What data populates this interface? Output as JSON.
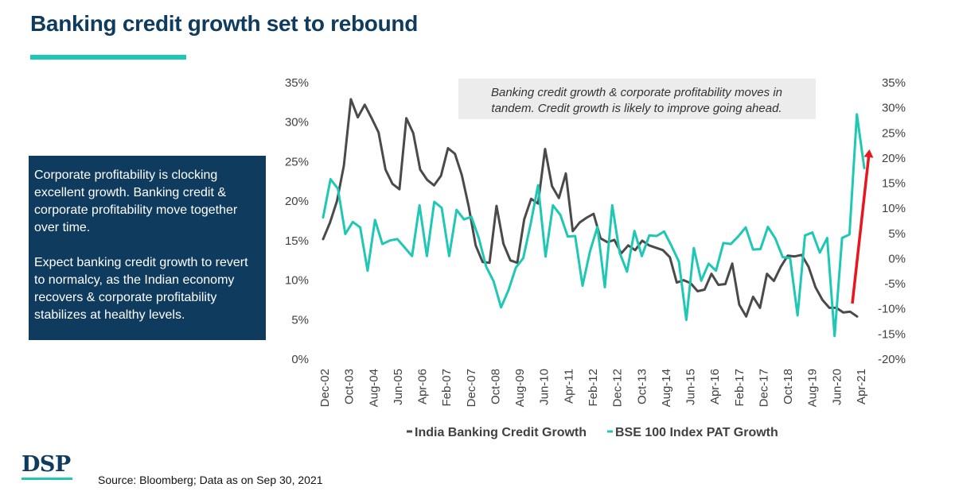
{
  "header": {
    "title": "Banking credit growth set to rebound"
  },
  "info_box": {
    "paragraph1": "Corporate profitability is clocking excellent growth. Banking credit & corporate profitability move together over time.",
    "paragraph2": "Expect banking credit growth to revert to normalcy, as the Indian economy recovers & corporate profitability stabilizes at healthy levels."
  },
  "footer": {
    "logo": "DSP",
    "source": "Source: Bloomberg; Data as on Sep 30, 2021"
  },
  "colors": {
    "title": "#0f3b5f",
    "accent": "#1ec8b4",
    "box": "#0f3b5f",
    "credit_line": "#4a4a4a",
    "pat_line": "#1ec8b4",
    "arrow": "#e8171e",
    "annotation_bg": "#ececec"
  },
  "chart_data": {
    "type": "line",
    "title": "",
    "x_tick_labels": [
      "Dec-02",
      "Oct-03",
      "Aug-04",
      "Jun-05",
      "Apr-06",
      "Feb-07",
      "Dec-07",
      "Oct-08",
      "Aug-09",
      "Jun-10",
      "Apr-11",
      "Feb-12",
      "Dec-12",
      "Oct-13",
      "Aug-14",
      "Jun-15",
      "Apr-16",
      "Feb-17",
      "Dec-17",
      "Oct-18",
      "Aug-19",
      "Jun-20",
      "Apr-21"
    ],
    "left_axis": {
      "ylim": [
        0,
        35
      ],
      "tick_step": 5,
      "tick_labels": [
        "0%",
        "5%",
        "10%",
        "15%",
        "20%",
        "25%",
        "30%",
        "35%"
      ]
    },
    "right_axis": {
      "ylim": [
        -20,
        35
      ],
      "tick_step": 5,
      "tick_labels": [
        "-20%",
        "-15%",
        "-10%",
        "-5%",
        "0%",
        "5%",
        "10%",
        "15%",
        "20%",
        "25%",
        "30%",
        "35%"
      ]
    },
    "annotation": "Banking credit growth & corporate profitability moves in tandem. Credit growth is likely to improve going ahead.",
    "series": [
      {
        "name": "India Banking Credit Growth",
        "axis": "left",
        "values": [
          15.2,
          17.3,
          20,
          24.5,
          32.9,
          30.6,
          32.2,
          30.5,
          28.7,
          24,
          22.2,
          21.5,
          30.5,
          28.6,
          24,
          22.7,
          22,
          23.2,
          26.7,
          26,
          23.3,
          19.3,
          14.4,
          12.3,
          12.2,
          19.4,
          14.6,
          12.5,
          12.2,
          17.7,
          20.3,
          19.7,
          26.6,
          21.9,
          20.4,
          23.5,
          16.2,
          17.3,
          17.9,
          18.4,
          15.3,
          14.8,
          15.1,
          13.4,
          14.4,
          13.8,
          15,
          14.4,
          14.1,
          13.8,
          12.9,
          9.7,
          10,
          9.6,
          8.6,
          8.8,
          10.8,
          9.4,
          9.5,
          12.1,
          6.9,
          5.4,
          7.9,
          6.5,
          10.8,
          9.9,
          11.7,
          13.1,
          13,
          13.2,
          11.7,
          9.1,
          7.5,
          6.5,
          6.5,
          5.9,
          6,
          5.4
        ]
      },
      {
        "name": "BSE 100 Index PAT Growth",
        "axis": "right",
        "values": [
          8.2,
          15.8,
          13.9,
          4.9,
          7.3,
          6.2,
          -2.4,
          7.7,
          2.9,
          3.6,
          3.9,
          2.2,
          0.5,
          10.6,
          0.5,
          11.3,
          10.1,
          0.5,
          9.7,
          7.8,
          8.3,
          4.1,
          -1.6,
          -4.5,
          -9.7,
          -6.3,
          -1.8,
          0.1,
          6.9,
          14.6,
          0.4,
          10.6,
          8.7,
          4.4,
          4.5,
          -5.4,
          1.4,
          6.3,
          -5.7,
          10.6,
          1.2,
          -2.6,
          5.5,
          0.5,
          4.6,
          4.5,
          5.4,
          2.5,
          -0.6,
          -12.2,
          2.1,
          -4.4,
          -1,
          -2.4,
          3.1,
          2.9,
          4.4,
          6.2,
          1.8,
          1.9,
          6.3,
          4,
          0.3,
          0.1,
          -11.3,
          4.6,
          5.2,
          1.2,
          4.1,
          -15.4,
          4.1,
          4.8,
          28.7,
          18
        ]
      }
    ]
  }
}
